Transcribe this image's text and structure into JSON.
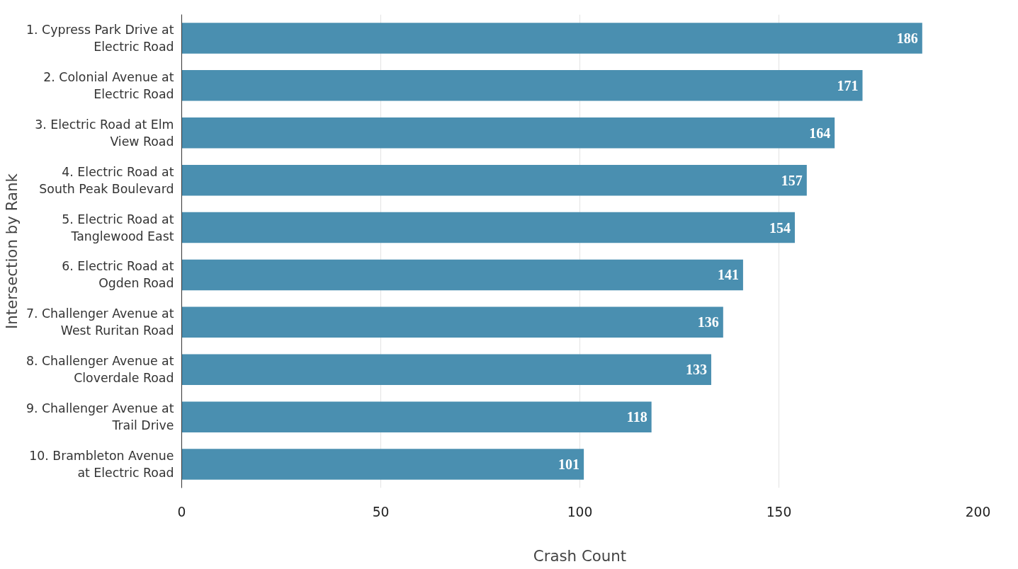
{
  "chart_data": {
    "type": "bar",
    "orientation": "horizontal",
    "xlabel": "Crash Count",
    "ylabel": "Intersection by Rank",
    "categories": [
      "1. Cypress Park Drive at\nElectric Road",
      "2. Colonial Avenue at\nElectric Road",
      "3. Electric Road at Elm\nView Road",
      "4. Electric Road at\nSouth Peak Boulevard",
      "5. Electric Road at\nTanglewood East",
      "6. Electric Road at\nOgden Road",
      "7. Challenger Avenue at\nWest Ruritan Road",
      "8. Challenger Avenue at\nCloverdale Road",
      "9. Challenger Avenue at\nTrail Drive",
      "10. Brambleton Avenue\nat Electric Road"
    ],
    "values": [
      186,
      171,
      164,
      157,
      154,
      141,
      136,
      133,
      118,
      101
    ],
    "color": "#4a8fb0",
    "xlim": [
      0,
      200
    ],
    "xticks": [
      0,
      50,
      100,
      150,
      200
    ],
    "grid": "x",
    "data_labels": true
  }
}
